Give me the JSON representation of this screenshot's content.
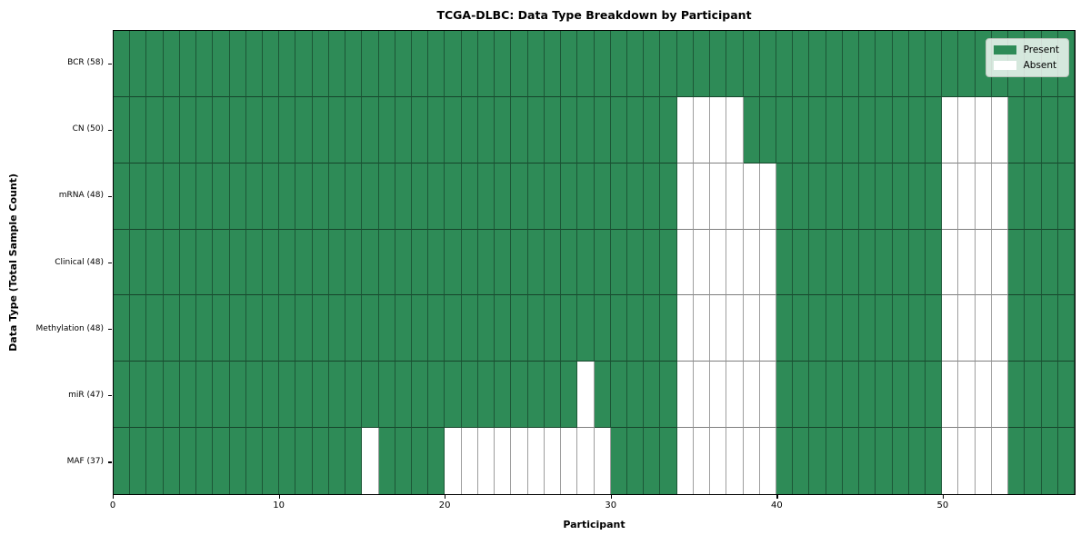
{
  "chart_data": {
    "type": "heatmap",
    "title": "TCGA-DLBC: Data Type Breakdown by Participant",
    "xlabel": "Participant",
    "ylabel": "Data Type (Total Sample Count)",
    "n_participants": 58,
    "x_ticks": [
      0,
      10,
      20,
      30,
      40,
      50
    ],
    "grid_on": true,
    "legend_position": "upper right",
    "colors": {
      "present": "#2e8b57",
      "absent": "#ffffff"
    },
    "legend": [
      {
        "label": "Present",
        "color": "#2e8b57"
      },
      {
        "label": "Absent",
        "color": "#ffffff"
      }
    ],
    "rows": [
      {
        "label": "BCR (58)",
        "data_type": "BCR",
        "total_samples": 58,
        "absent_participants": []
      },
      {
        "label": "CN (50)",
        "data_type": "CN",
        "total_samples": 50,
        "absent_participants": [
          34,
          35,
          36,
          37,
          50,
          51,
          52,
          53
        ]
      },
      {
        "label": "mRNA (48)",
        "data_type": "mRNA",
        "total_samples": 48,
        "absent_participants": [
          34,
          35,
          36,
          37,
          38,
          39,
          50,
          51,
          52,
          53
        ]
      },
      {
        "label": "Clinical (48)",
        "data_type": "Clinical",
        "total_samples": 48,
        "absent_participants": [
          34,
          35,
          36,
          37,
          38,
          39,
          50,
          51,
          52,
          53
        ]
      },
      {
        "label": "Methylation (48)",
        "data_type": "Methylation",
        "total_samples": 48,
        "absent_participants": [
          34,
          35,
          36,
          37,
          38,
          39,
          50,
          51,
          52,
          53
        ]
      },
      {
        "label": "miR (47)",
        "data_type": "miR",
        "total_samples": 47,
        "absent_participants": [
          28,
          34,
          35,
          36,
          37,
          38,
          39,
          50,
          51,
          52,
          53
        ]
      },
      {
        "label": "MAF (37)",
        "data_type": "MAF",
        "total_samples": 37,
        "absent_participants": [
          15,
          20,
          21,
          22,
          23,
          24,
          25,
          26,
          27,
          28,
          29,
          34,
          35,
          36,
          37,
          38,
          39,
          50,
          51,
          52,
          53
        ]
      }
    ]
  }
}
